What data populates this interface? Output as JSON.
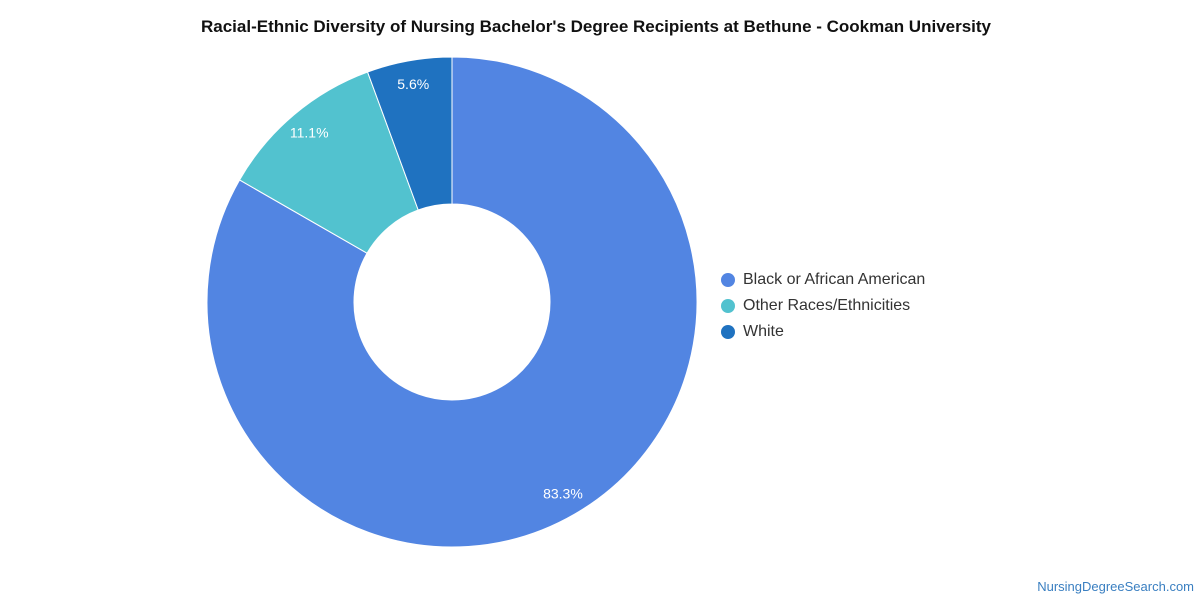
{
  "chart_data": {
    "type": "pie",
    "title": "Racial-Ethnic Diversity of Nursing Bachelor's Degree Recipients at Bethune - Cookman University",
    "donut": true,
    "legend_position": "right",
    "slices": [
      {
        "name": "Black or African American",
        "value": 83.3,
        "label": "83.3%",
        "color": "#5285e2"
      },
      {
        "name": "Other Races/Ethnicities",
        "value": 11.1,
        "label": "11.1%",
        "color": "#52c2cf"
      },
      {
        "name": "White",
        "value": 5.6,
        "label": "5.6%",
        "color": "#1f72c0"
      }
    ]
  },
  "footer": {
    "credit": "NursingDegreeSearch.com"
  }
}
